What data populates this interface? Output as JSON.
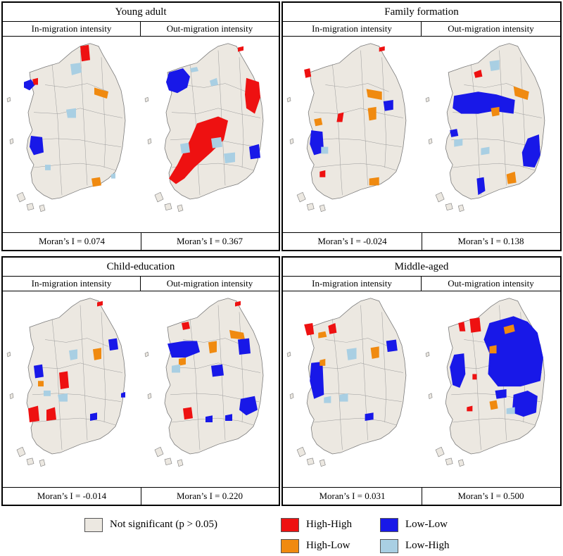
{
  "panels": [
    {
      "title": "Young adult",
      "left": {
        "label": "In-migration intensity",
        "moran": "Moran’s I = 0.074"
      },
      "right": {
        "label": "Out-migration intensity",
        "moran": "Moran’s I = 0.367"
      }
    },
    {
      "title": "Family formation",
      "left": {
        "label": "In-migration intensity",
        "moran": "Moran’s I = -0.024"
      },
      "right": {
        "label": "Out-migration intensity",
        "moran": "Moran’s I = 0.138"
      }
    },
    {
      "title": "Child-education",
      "left": {
        "label": "In-migration intensity",
        "moran": "Moran’s I = -0.014"
      },
      "right": {
        "label": "Out-migration intensity",
        "moran": "Moran’s I = 0.220"
      }
    },
    {
      "title": "Middle-aged",
      "left": {
        "label": "In-migration intensity",
        "moran": "Moran’s I = 0.031"
      },
      "right": {
        "label": "Out-migration intensity",
        "moran": "Moran’s I = 0.500"
      }
    }
  ],
  "legend": {
    "not_significant": "Not significant  (p > 0.05)",
    "high_high": "High-High",
    "low_low": "Low-Low",
    "high_low": "High-Low",
    "low_high": "Low-High"
  },
  "colors": {
    "not_significant": "#ece8e1",
    "high_high": "#ee1111",
    "low_low": "#1818e8",
    "high_low": "#f08a10",
    "low_high": "#a9cfe3",
    "boundary": "#7a7a7a"
  }
}
